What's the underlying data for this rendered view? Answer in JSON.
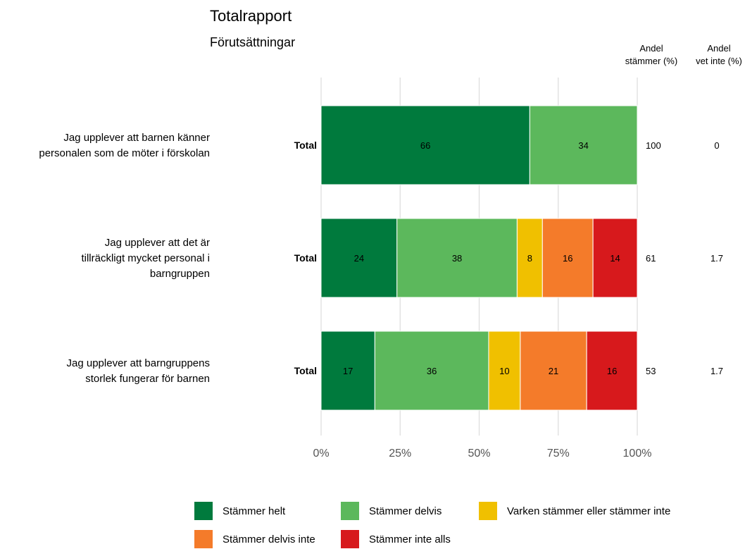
{
  "title": "Totalrapport",
  "subtitle": "Förutsättningar",
  "column_headers": {
    "stammer": "Andel\nstämmer (%)",
    "vet_inte": "Andel\nvet inte (%)"
  },
  "chart_data": {
    "type": "bar",
    "orientation": "horizontal",
    "stacked": true,
    "title": "Totalrapport",
    "subtitle": "Förutsättningar",
    "xlim": [
      0,
      100
    ],
    "x_ticks": [
      "0%",
      "25%",
      "50%",
      "75%",
      "100%"
    ],
    "grid": true,
    "legend_position": "bottom",
    "series": [
      {
        "name": "Stämmer helt",
        "color": "#007a3d"
      },
      {
        "name": "Stämmer delvis",
        "color": "#5cb85c"
      },
      {
        "name": "Varken stämmer eller stämmer inte",
        "color": "#f0c000"
      },
      {
        "name": "Stämmer delvis inte",
        "color": "#f47b2a"
      },
      {
        "name": "Stämmer inte alls",
        "color": "#d7191c"
      }
    ],
    "rows": [
      {
        "question": "Jag upplever att barnen känner\npersonalen som de möter i förskolan",
        "group": "Total",
        "values": [
          66,
          34,
          0,
          0,
          0
        ],
        "andel_stammer": "100",
        "andel_vet_inte": "0"
      },
      {
        "question": "Jag upplever att det är\ntillräckligt mycket personal i\nbarngruppen",
        "group": "Total",
        "values": [
          24,
          38,
          8,
          16,
          14
        ],
        "andel_stammer": "61",
        "andel_vet_inte": "1.7"
      },
      {
        "question": "Jag upplever att barngruppens\nstorlek fungerar för barnen",
        "group": "Total",
        "values": [
          17,
          36,
          10,
          21,
          16
        ],
        "andel_stammer": "53",
        "andel_vet_inte": "1.7"
      }
    ]
  }
}
